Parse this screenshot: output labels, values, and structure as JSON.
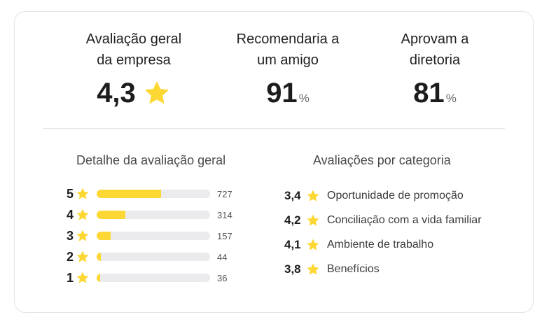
{
  "summary": {
    "overall": {
      "label": "Avaliação geral\nda empresa",
      "value": "4,3"
    },
    "recommend": {
      "label": "Recomendaria a\num amigo",
      "value": "91",
      "unit": "%"
    },
    "approve": {
      "label": "Aprovam a\ndiretoria",
      "value": "81",
      "unit": "%"
    }
  },
  "distribution": {
    "title": "Detalhe da avaliação geral",
    "rows": [
      {
        "stars": "5",
        "count": "727",
        "fill": 0.57
      },
      {
        "stars": "4",
        "count": "314",
        "fill": 0.25
      },
      {
        "stars": "3",
        "count": "157",
        "fill": 0.125
      },
      {
        "stars": "2",
        "count": "44",
        "fill": 0.035
      },
      {
        "stars": "1",
        "count": "36",
        "fill": 0.03
      }
    ]
  },
  "categories": {
    "title": "Avaliações por categoria",
    "items": [
      {
        "score": "3,4",
        "label": "Oportunidade de promoção"
      },
      {
        "score": "4,2",
        "label": "Conciliação com a vida familiar"
      },
      {
        "score": "4,1",
        "label": "Ambiente de trabalho"
      },
      {
        "score": "3,8",
        "label": "Benefícios"
      }
    ]
  },
  "colors": {
    "star": "#fdd835",
    "track": "#ebebed",
    "border": "#e3e3e3"
  },
  "icons": {
    "star": "star-icon"
  }
}
